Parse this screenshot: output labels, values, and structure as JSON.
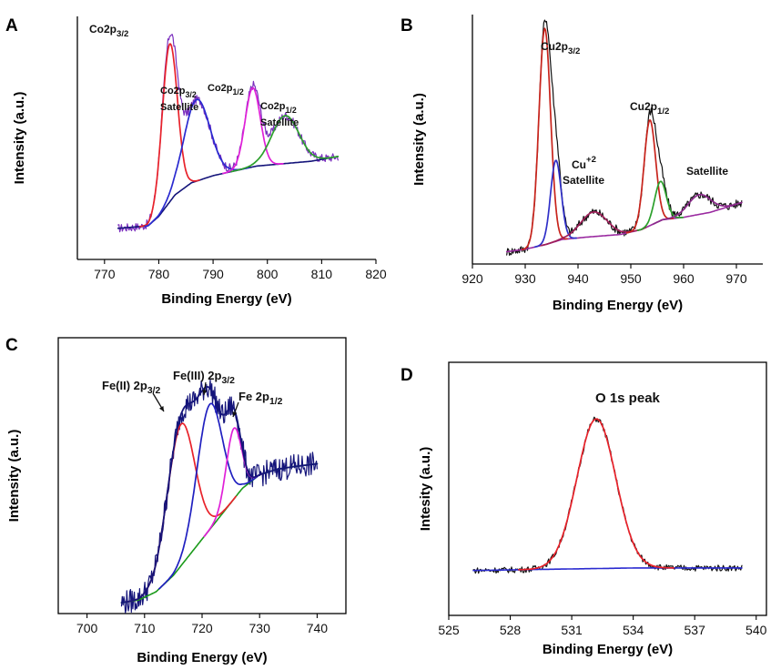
{
  "chart_data": [
    {
      "panel": "A",
      "type": "line",
      "title": "",
      "xlabel": "Binding Energy (eV)",
      "ylabel": "Intensity (a.u.)",
      "xlim": [
        765,
        820
      ],
      "ylim": [
        0,
        1
      ],
      "xticks": [
        "770",
        "780",
        "790",
        "800",
        "810",
        "820"
      ],
      "raw_color": "#7b2fbe",
      "background": {
        "name": "Background",
        "color": "#14147a",
        "points": [
          [
            772.5,
            0.13
          ],
          [
            778,
            0.14
          ],
          [
            780,
            0.18
          ],
          [
            783,
            0.27
          ],
          [
            786,
            0.32
          ],
          [
            790,
            0.35
          ],
          [
            794,
            0.37
          ],
          [
            798,
            0.39
          ],
          [
            803,
            0.4
          ],
          [
            808,
            0.41
          ],
          [
            813,
            0.43
          ]
        ]
      },
      "components": [
        {
          "name": "Co2p3/2",
          "color": "#e8222a",
          "center": 782,
          "amplitude": 0.66,
          "width": 1.4
        },
        {
          "name": "Co2p3/2 Satellite",
          "color": "#2a2ad0",
          "center": 787,
          "amplitude": 0.34,
          "width": 2.4
        },
        {
          "name": "Co2p1/2",
          "color": "#e020d8",
          "center": 797.3,
          "amplitude": 0.33,
          "width": 1.4
        },
        {
          "name": "Co2p1/2 Satellite",
          "color": "#2ca02c",
          "center": 803.3,
          "amplitude": 0.2,
          "width": 2.5
        }
      ],
      "envelope_color": "#6a6a6a",
      "annotations": [
        {
          "base": "Co2p",
          "sub": "3/2",
          "line2": ""
        },
        {
          "base": "Co2p",
          "sub": "3/2",
          "line2": "Satellite"
        },
        {
          "base": "Co2p",
          "sub": "1/2",
          "line2": ""
        },
        {
          "base": "Co2p",
          "sub": "1/2",
          "line2": "Satellite"
        }
      ]
    },
    {
      "panel": "B",
      "type": "line",
      "title": "",
      "xlabel": "Binding Energy (eV)",
      "ylabel": "Intensity (a.u.)",
      "xlim": [
        920,
        975
      ],
      "ylim": [
        0,
        1
      ],
      "xticks": [
        "920",
        "930",
        "940",
        "950",
        "960",
        "970"
      ],
      "raw_color": "#111111",
      "background": {
        "name": "Background",
        "color": "#9a2aa0",
        "points": [
          [
            926.5,
            0.05
          ],
          [
            930,
            0.06
          ],
          [
            934,
            0.08
          ],
          [
            937,
            0.1
          ],
          [
            942,
            0.11
          ],
          [
            948,
            0.12
          ],
          [
            952,
            0.14
          ],
          [
            956,
            0.18
          ],
          [
            960,
            0.19
          ],
          [
            965,
            0.21
          ],
          [
            971,
            0.25
          ]
        ]
      },
      "components": [
        {
          "name": "Cu2p3/2",
          "color": "#c8241c",
          "center": 933.7,
          "amplitude": 0.88,
          "width": 1.1
        },
        {
          "name": "Cu2p3/2 shoulder",
          "color": "#3030c8",
          "center": 935.8,
          "amplitude": 0.33,
          "width": 1.0
        },
        {
          "name": "Cu+2 Satellite",
          "color": "#a0205a",
          "center": 943,
          "amplitude": 0.1,
          "width": 2.5
        },
        {
          "name": "Cu2p1/2",
          "color": "#c8241c",
          "center": 953.6,
          "amplitude": 0.43,
          "width": 1.1
        },
        {
          "name": "Cu2p1/2 shoulder",
          "color": "#2ca02c",
          "center": 955.6,
          "amplitude": 0.16,
          "width": 1.1
        },
        {
          "name": "Satellite",
          "color": "#8a2a8a",
          "center": 963,
          "amplitude": 0.08,
          "width": 2.2
        }
      ],
      "envelope_color": "#a0205a",
      "annotations": [
        {
          "base": "Cu2p",
          "sub": "3/2",
          "line2": ""
        },
        {
          "base": "Cu",
          "sup": "+2",
          "line2": "Satellite"
        },
        {
          "base": "Cu2p",
          "sub": "1/2",
          "line2": ""
        },
        {
          "base": "Satellite",
          "sub": "",
          "line2": ""
        }
      ]
    },
    {
      "panel": "C",
      "type": "line",
      "title": "",
      "xlabel": "Binding Energy (eV)",
      "ylabel": "Intensity (a.u.)",
      "xlim": [
        695,
        745
      ],
      "ylim": [
        0,
        1
      ],
      "xticks": [
        "700",
        "710",
        "720",
        "730",
        "740"
      ],
      "raw_color": "#14147a",
      "background": {
        "name": "Background",
        "color": "#1a9a1a",
        "points": [
          [
            706,
            0.04
          ],
          [
            709,
            0.05
          ],
          [
            712,
            0.08
          ],
          [
            715,
            0.14
          ],
          [
            718,
            0.22
          ],
          [
            721,
            0.3
          ],
          [
            724,
            0.38
          ],
          [
            727,
            0.46
          ],
          [
            730,
            0.51
          ],
          [
            733,
            0.53
          ],
          [
            736,
            0.54
          ],
          [
            740,
            0.55
          ]
        ]
      },
      "components": [
        {
          "name": "Fe(II) 2p3/2",
          "color": "#e8222a",
          "center": 716.3,
          "amplitude": 0.52,
          "width": 2.4
        },
        {
          "name": "Fe(III) 2p3/2",
          "color": "#2020c0",
          "center": 721.3,
          "amplitude": 0.46,
          "width": 2.2
        },
        {
          "name": "Fe 2p1/2",
          "color": "#e020d8",
          "center": 725.5,
          "amplitude": 0.26,
          "width": 1.3
        }
      ],
      "envelope_color": "#14147a",
      "annotations": [
        {
          "base": "Fe(II) 2p",
          "sub": "3/2",
          "line2": ""
        },
        {
          "base": "Fe(III) 2p",
          "sub": "3/2",
          "line2": ""
        },
        {
          "base": "Fe 2p",
          "sub": "1/2",
          "line2": ""
        }
      ]
    },
    {
      "panel": "D",
      "type": "line",
      "title": "",
      "xlabel": "Binding Energy (eV)",
      "ylabel": "Intesity (a.u.)",
      "xlim": [
        525,
        540.5
      ],
      "ylim": [
        0,
        1
      ],
      "xticks": [
        "525",
        "528",
        "531",
        "534",
        "537",
        "540"
      ],
      "raw_color": "#111111",
      "background": {
        "name": "Background",
        "color": "#2a2ad0",
        "points": [
          [
            526.2,
            0.18
          ],
          [
            530,
            0.185
          ],
          [
            534,
            0.19
          ],
          [
            539.3,
            0.19
          ]
        ]
      },
      "components": [
        {
          "name": "O 1s peak",
          "color": "#e8222a",
          "center": 532.2,
          "amplitude": 0.6,
          "width": 0.95
        }
      ],
      "envelope_color": "#e8222a",
      "annotations": [
        {
          "base": "O 1s peak",
          "sub": "",
          "line2": ""
        }
      ]
    }
  ]
}
